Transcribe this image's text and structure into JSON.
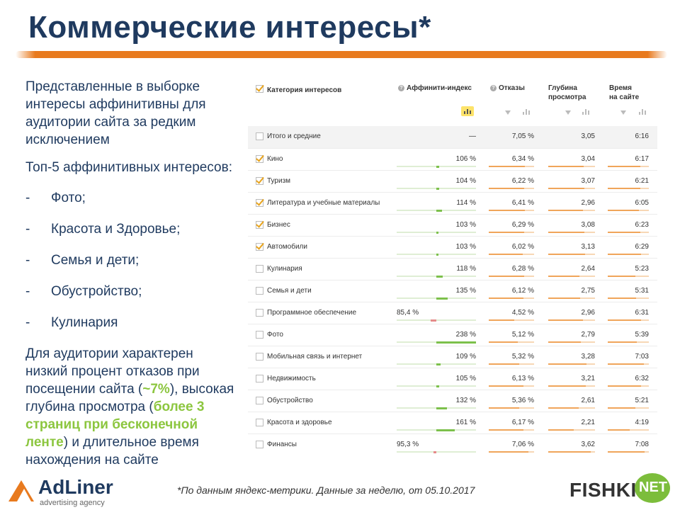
{
  "title": "Коммерческие интересы*",
  "left": {
    "para1": "Представленные в выборке интересы аффинитивны для аудитории сайта за редким исключением",
    "para2": "Топ-5 аффинитивных интересов:",
    "bullets": [
      "Фото;",
      "Красота и Здоровье;",
      "Семья и дети;",
      "Обустройство;",
      "Кулинария"
    ],
    "para3_a": "Для аудитории характерен низкий процент отказов при посещении сайта (",
    "para3_b": "~7%",
    "para3_c": "), высокая глубина просмотра (",
    "para3_d": "более 3 страниц при бесконечной ленте",
    "para3_e": ") и длительное время нахождения на сайте"
  },
  "table": {
    "headers": {
      "category": "Категория интересов",
      "affinity": "Аффинити-индекс",
      "bounce": "Отказы",
      "depth_1": "Глубина",
      "depth_2": "просмотра",
      "time_1": "Время",
      "time_2": "на сайте"
    },
    "total": {
      "name": "Итого и средние",
      "affinity": "—",
      "bounce": "7,05 %",
      "depth": "3,05",
      "time": "6:16"
    },
    "rows": [
      {
        "name": "Кино",
        "checked": true,
        "affinity": "106 %",
        "aff": 106,
        "bounce": "6,34 %",
        "b": 6.34,
        "depth": "3,04",
        "d": 3.04,
        "time": "6:17",
        "t": 6.28
      },
      {
        "name": "Туризм",
        "checked": true,
        "affinity": "104 %",
        "aff": 104,
        "bounce": "6,22 %",
        "b": 6.22,
        "depth": "3,07",
        "d": 3.07,
        "time": "6:21",
        "t": 6.35
      },
      {
        "name": "Литература и учебные материалы",
        "checked": true,
        "affinity": "114 %",
        "aff": 114,
        "bounce": "6,41 %",
        "b": 6.41,
        "depth": "2,96",
        "d": 2.96,
        "time": "6:05",
        "t": 6.08
      },
      {
        "name": "Бизнес",
        "checked": true,
        "affinity": "103 %",
        "aff": 103,
        "bounce": "6,29 %",
        "b": 6.29,
        "depth": "3,08",
        "d": 3.08,
        "time": "6:23",
        "t": 6.38
      },
      {
        "name": "Автомобили",
        "checked": true,
        "affinity": "103 %",
        "aff": 103,
        "bounce": "6,02 %",
        "b": 6.02,
        "depth": "3,13",
        "d": 3.13,
        "time": "6:29",
        "t": 6.48
      },
      {
        "name": "Кулинария",
        "checked": false,
        "affinity": "118 %",
        "aff": 118,
        "bounce": "6,28 %",
        "b": 6.28,
        "depth": "2,64",
        "d": 2.64,
        "time": "5:23",
        "t": 5.38
      },
      {
        "name": "Семья и дети",
        "checked": false,
        "affinity": "135 %",
        "aff": 135,
        "bounce": "6,12 %",
        "b": 6.12,
        "depth": "2,75",
        "d": 2.75,
        "time": "5:31",
        "t": 5.52
      },
      {
        "name": "Программное обеспечение",
        "checked": false,
        "affinity": "85,4 %",
        "aff": 85.4,
        "bounce": "4,52 %",
        "b": 4.52,
        "depth": "2,96",
        "d": 2.96,
        "time": "6:31",
        "t": 6.52
      },
      {
        "name": "Фото",
        "checked": false,
        "affinity": "238 %",
        "aff": 238,
        "bounce": "5,12 %",
        "b": 5.12,
        "depth": "2,79",
        "d": 2.79,
        "time": "5:39",
        "t": 5.65
      },
      {
        "name": "Мобильная связь и интернет",
        "checked": false,
        "affinity": "109 %",
        "aff": 109,
        "bounce": "5,32 %",
        "b": 5.32,
        "depth": "3,28",
        "d": 3.28,
        "time": "7:03",
        "t": 7.05
      },
      {
        "name": "Недвижимость",
        "checked": false,
        "affinity": "105 %",
        "aff": 105,
        "bounce": "6,13 %",
        "b": 6.13,
        "depth": "3,21",
        "d": 3.21,
        "time": "6:32",
        "t": 6.53
      },
      {
        "name": "Обустройство",
        "checked": false,
        "affinity": "132 %",
        "aff": 132,
        "bounce": "5,36 %",
        "b": 5.36,
        "depth": "2,61",
        "d": 2.61,
        "time": "5:21",
        "t": 5.35
      },
      {
        "name": "Красота и здоровье",
        "checked": false,
        "affinity": "161 %",
        "aff": 161,
        "bounce": "6,17 %",
        "b": 6.17,
        "depth": "2,21",
        "d": 2.21,
        "time": "4:19",
        "t": 4.32
      },
      {
        "name": "Финансы",
        "checked": false,
        "affinity": "95,3 %",
        "aff": 95.3,
        "bounce": "7,06 %",
        "b": 7.06,
        "depth": "3,62",
        "d": 3.62,
        "time": "7:08",
        "t": 7.13
      }
    ]
  },
  "footnote": "*По данным яндекс-метрики. Данные за неделю, от 05.10.2017",
  "logos": {
    "adliner_name": "AdLiner",
    "adliner_sub": "advertising agency",
    "fishki_word": "FISHKI",
    "fishki_net": "NET"
  },
  "colors": {
    "title": "#1f3a5f",
    "accent": "#e87a1e",
    "highlight": "#8cc63f"
  }
}
